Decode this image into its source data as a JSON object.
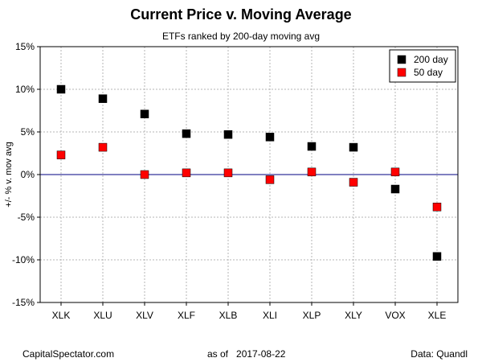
{
  "title": "Current Price v. Moving Average",
  "subtitle": "ETFs ranked by 200-day moving avg",
  "footer": {
    "source": "CapitalSpectator.com",
    "asof_label": "as of",
    "asof_date": "2017-08-22",
    "data_credit": "Data: Quandl"
  },
  "chart_data": {
    "type": "scatter",
    "title": "Current Price v. Moving Average",
    "subtitle": "ETFs ranked by 200-day moving avg",
    "xlabel": "",
    "ylabel": "+/- % v. mov avg",
    "ylim": [
      -15,
      15
    ],
    "yticks": [
      "-15%",
      "-10%",
      "-5%",
      "0%",
      "5%",
      "10%",
      "15%"
    ],
    "yticks_values": [
      -15,
      -10,
      -5,
      0,
      5,
      10,
      15
    ],
    "categories": [
      "XLK",
      "XLU",
      "XLV",
      "XLF",
      "XLB",
      "XLI",
      "XLP",
      "XLY",
      "VOX",
      "XLE"
    ],
    "series": [
      {
        "name": "200 day",
        "color": "#000000",
        "values": [
          10.0,
          8.9,
          7.1,
          4.8,
          4.7,
          4.4,
          3.3,
          3.2,
          -1.7,
          -9.6
        ]
      },
      {
        "name": "50 day",
        "color": "#ff0000",
        "values": [
          2.3,
          3.2,
          0.0,
          0.2,
          0.2,
          -0.6,
          0.3,
          -0.9,
          0.3,
          -3.8
        ]
      }
    ],
    "grid": true,
    "zero_line_color": "#000080",
    "legend_position": "top-right"
  }
}
